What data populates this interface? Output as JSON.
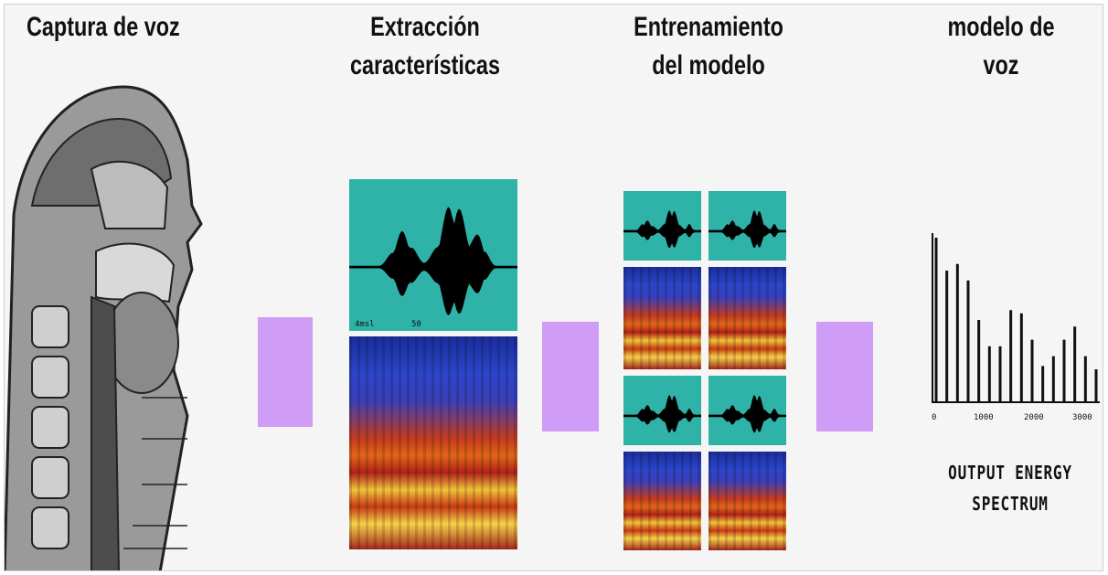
{
  "stages": [
    {
      "lines": [
        "Captura de voz"
      ]
    },
    {
      "lines": [
        "Extracción",
        "características"
      ]
    },
    {
      "lines": [
        "Entrenamiento",
        "del modelo"
      ]
    },
    {
      "lines": [
        "modelo de",
        "voz"
      ]
    }
  ],
  "waveform_axis": {
    "left": "4msl",
    "right": "50"
  },
  "spectrum": {
    "xticks": [
      "0",
      "1000",
      "2000",
      "3000"
    ],
    "output_label_line1": "OUTPUT ENERGY",
    "output_label_line2": "SPECTRUM",
    "bar_levels": [
      1.0,
      0.8,
      0.84,
      0.74,
      0.5,
      0.34,
      0.34,
      0.56,
      0.54,
      0.38,
      0.22,
      0.28,
      0.38,
      0.46,
      0.28,
      0.2
    ]
  },
  "colors": {
    "arrow": "#cf9cf6",
    "waveform_bg": "#2fb3a8",
    "frame_bg": "#f4f5f4"
  }
}
